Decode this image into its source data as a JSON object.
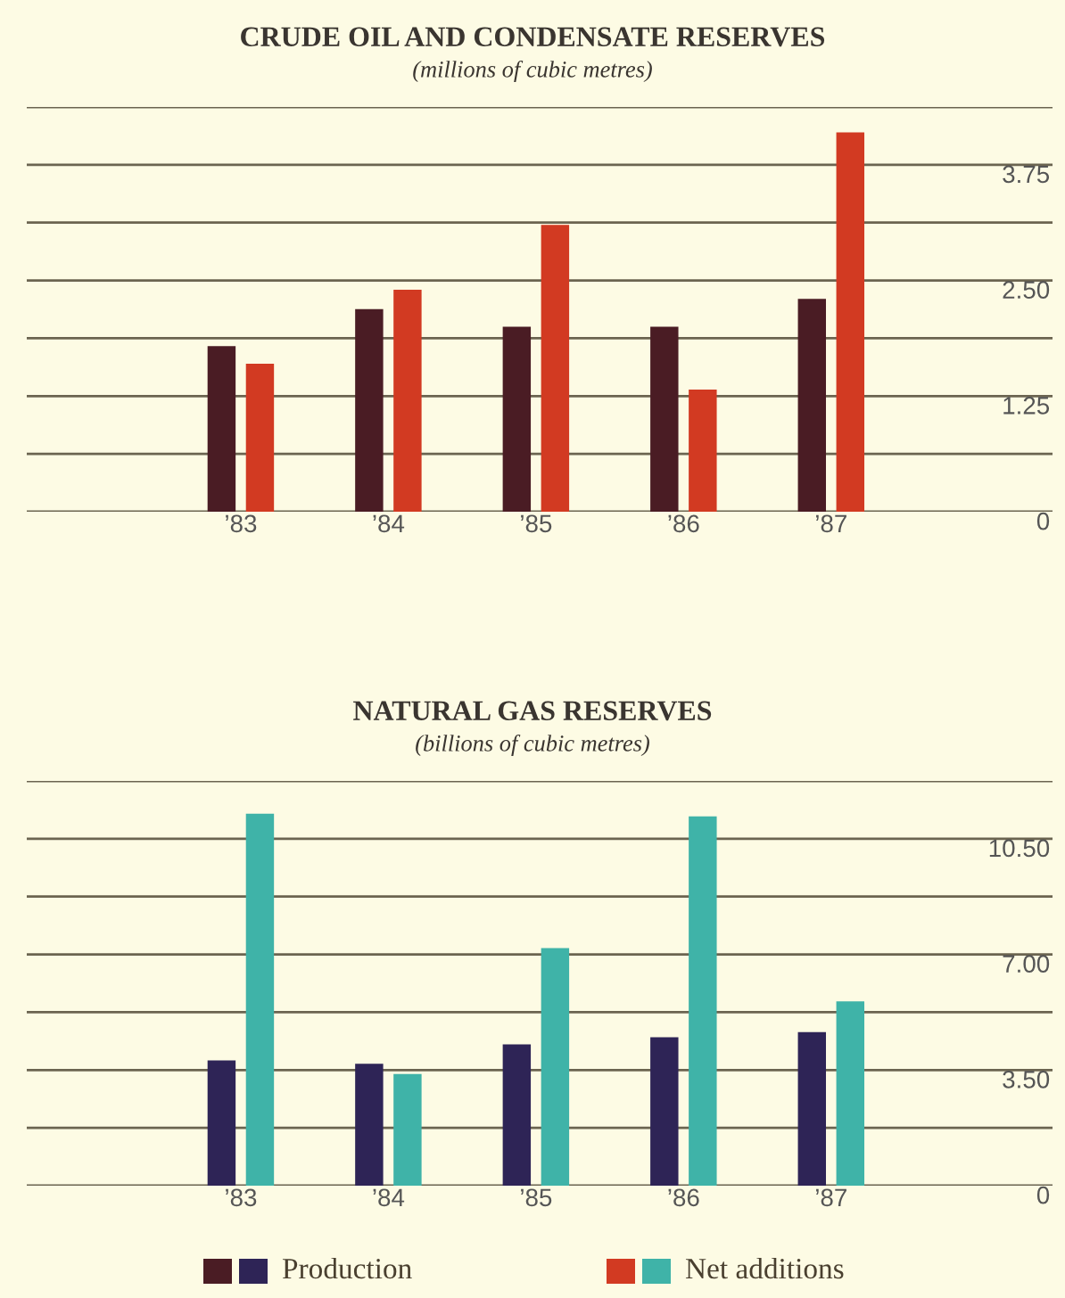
{
  "chart_data": [
    {
      "type": "bar",
      "title": "CRUDE OIL AND CONDENSATE RESERVES",
      "subtitle": "(millions of cubic metres)",
      "categories": [
        "’83",
        "’84",
        "’85",
        "’86",
        "’87"
      ],
      "series": [
        {
          "color": "#4a1c24",
          "values": [
            1.79,
            2.19,
            2.0,
            2.0,
            2.3
          ]
        },
        {
          "color": "#d23a22",
          "values": [
            1.6,
            2.4,
            3.1,
            1.32,
            4.1
          ]
        }
      ],
      "ylim": [
        0,
        4.375
      ],
      "yticks": [
        0,
        {
          "value": 0.625,
          "label": null
        },
        {
          "value": 1.25,
          "label": "1.25"
        },
        {
          "value": 1.875,
          "label": null
        },
        {
          "value": 2.5,
          "label": "2.50"
        },
        {
          "value": 3.125,
          "label": null
        },
        {
          "value": 3.75,
          "label": "3.75"
        },
        {
          "value": 4.375,
          "label": null
        }
      ],
      "grid": "y"
    },
    {
      "type": "bar",
      "title": "NATURAL GAS RESERVES",
      "subtitle": "(billions of cubic metres)",
      "categories": [
        "’83",
        "’84",
        "’85",
        "’86",
        "’87"
      ],
      "series": [
        {
          "name": "Production",
          "color": "#2e2456",
          "values": [
            3.79,
            3.69,
            4.28,
            4.49,
            4.65
          ]
        },
        {
          "name": "Net additions",
          "color": "#3fb3a8",
          "values": [
            11.26,
            3.38,
            7.19,
            11.18,
            5.58
          ]
        }
      ],
      "ylim": [
        0,
        12.25
      ],
      "yticks": [
        0,
        {
          "value": 1.75,
          "label": null
        },
        {
          "value": 3.5,
          "label": "3.50"
        },
        {
          "value": 5.25,
          "label": null
        },
        {
          "value": 7.0,
          "label": "7.00"
        },
        {
          "value": 8.75,
          "label": null
        },
        {
          "value": 10.5,
          "label": "10.50"
        },
        {
          "value": 12.25,
          "label": null
        }
      ],
      "grid": "y",
      "legend": "bottom"
    }
  ]
}
